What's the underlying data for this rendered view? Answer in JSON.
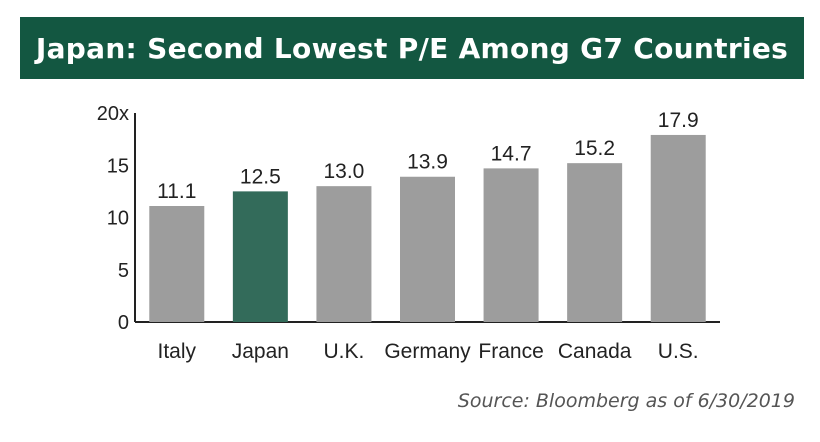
{
  "colors": {
    "banner": "#135741",
    "bar": "#9d9d9d",
    "highlight_bar": "#336b5a"
  },
  "chart_data": {
    "type": "bar",
    "title": "Japan: Second Lowest P/E Among G7 Countries",
    "categories": [
      "Italy",
      "Japan",
      "U.K.",
      "Germany",
      "France",
      "Canada",
      "U.S."
    ],
    "values": [
      11.1,
      12.5,
      13.0,
      13.9,
      14.7,
      15.2,
      17.9
    ],
    "value_labels": [
      "11.1",
      "12.5",
      "13.0",
      "13.9",
      "14.7",
      "15.2",
      "17.9"
    ],
    "highlight": "Japan",
    "ylim": [
      0,
      20
    ],
    "yticks": [
      0,
      5,
      10,
      15,
      20
    ],
    "ytick_labels": [
      "0",
      "5",
      "10",
      "15",
      "20x"
    ],
    "grid": false,
    "source": "Source: Bloomberg as of 6/30/2019"
  }
}
